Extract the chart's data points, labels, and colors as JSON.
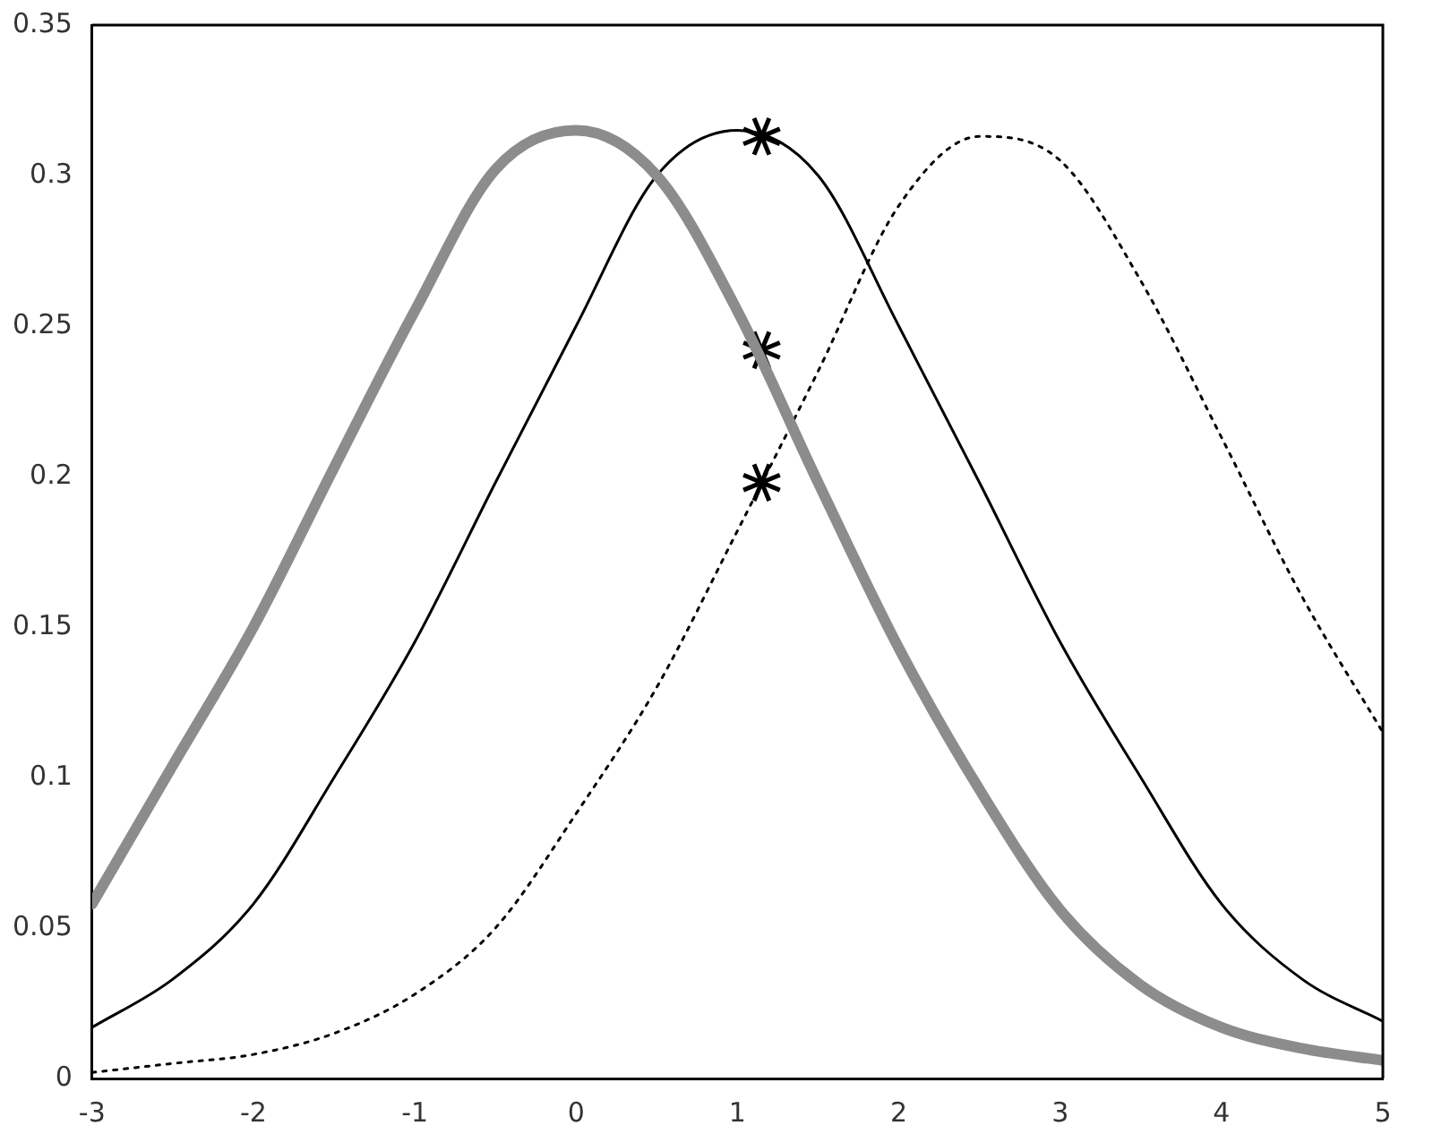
{
  "chart_data": {
    "type": "line",
    "xlim": [
      -3,
      5
    ],
    "ylim": [
      0,
      0.35
    ],
    "xticks": [
      -3,
      -2,
      -1,
      0,
      1,
      2,
      3,
      4,
      5
    ],
    "yticks": [
      0,
      0.05,
      0.1,
      0.15,
      0.2,
      0.25,
      0.3,
      0.35
    ],
    "grid": false,
    "legend": false,
    "series": [
      {
        "type": "line",
        "color": "#8c8c8c",
        "line_style": "solid",
        "marker": "none",
        "x": [
          -3,
          -2.5,
          -2,
          -1.5,
          -1,
          -0.5,
          0,
          0.5,
          1,
          1.5,
          2,
          2.5,
          3,
          3.5,
          4,
          4.5,
          5
        ],
        "values": [
          0.058,
          0.104,
          0.15,
          0.203,
          0.255,
          0.302,
          0.315,
          0.3,
          0.255,
          0.198,
          0.143,
          0.096,
          0.056,
          0.031,
          0.017,
          0.01,
          0.006
        ]
      },
      {
        "type": "line",
        "color": "#000000",
        "line_style": "solid",
        "marker": "none",
        "x": [
          -3,
          -2.5,
          -2,
          -1.5,
          -1,
          -0.5,
          0,
          0.5,
          1,
          1.5,
          2,
          2.5,
          3,
          3.5,
          4,
          4.5,
          5
        ],
        "values": [
          0.017,
          0.033,
          0.058,
          0.1,
          0.145,
          0.198,
          0.25,
          0.3,
          0.315,
          0.3,
          0.25,
          0.198,
          0.145,
          0.1,
          0.058,
          0.033,
          0.019
        ]
      },
      {
        "type": "line",
        "color": "#000000",
        "line_style": "dotted",
        "marker": "none",
        "x": [
          -3,
          -2.5,
          -2,
          -1.5,
          -1,
          -0.5,
          0,
          0.5,
          1,
          1.5,
          2,
          2.5,
          3,
          3.5,
          4,
          4.5,
          5
        ],
        "values": [
          0.002,
          0.005,
          0.008,
          0.015,
          0.028,
          0.05,
          0.088,
          0.13,
          0.182,
          0.235,
          0.29,
          0.313,
          0.305,
          0.265,
          0.213,
          0.16,
          0.115
        ]
      },
      {
        "type": "scatter",
        "color": "#000000",
        "marker": "cross",
        "x": [
          1.15,
          1.15,
          1.15
        ],
        "values": [
          0.313,
          0.242,
          0.198
        ]
      }
    ]
  }
}
